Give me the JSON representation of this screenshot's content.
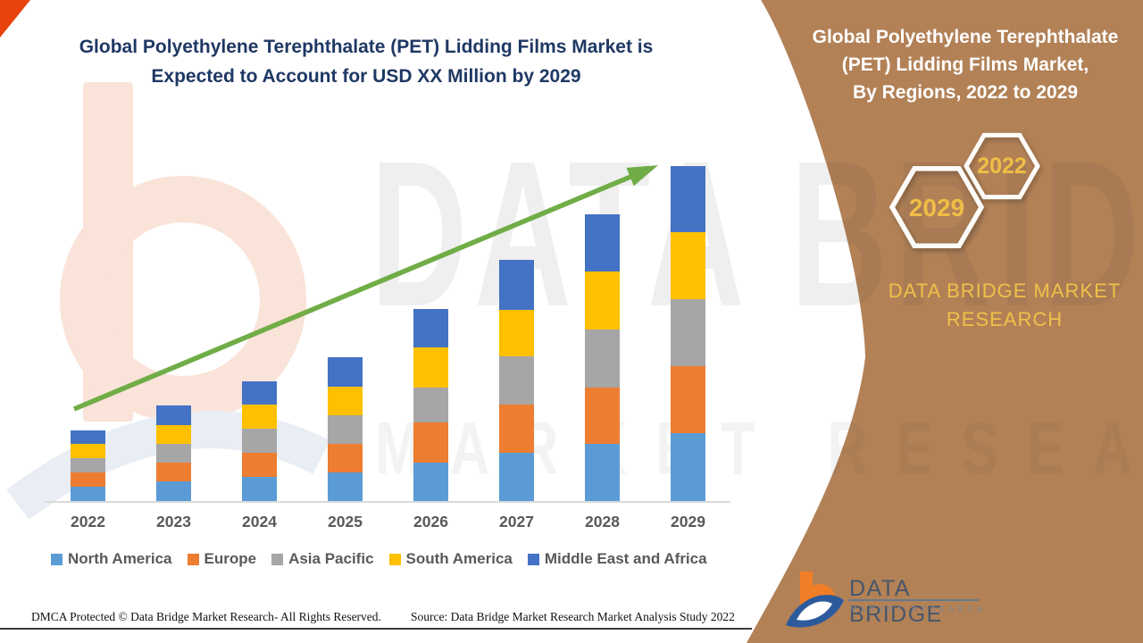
{
  "main_title": {
    "line1": "Global Polyethylene Terephthalate (PET) Lidding Films Market is",
    "line2": "Expected to Account for USD XX Million by 2029",
    "color": "#1F3864"
  },
  "chart_data": {
    "type": "bar",
    "subtype": "stacked-column",
    "title": "Global Polyethylene Terephthalate (PET) Lidding Films Market is Expected to Account for USD XX Million by 2029",
    "categories": [
      "2022",
      "2023",
      "2024",
      "2025",
      "2026",
      "2027",
      "2028",
      "2029"
    ],
    "series": [
      {
        "name": "North America",
        "color": "#5B9BD5",
        "values": [
          16,
          22,
          27,
          32,
          43,
          54,
          64,
          76
        ]
      },
      {
        "name": "Europe",
        "color": "#ED7D31",
        "values": [
          16,
          21,
          27,
          32,
          45,
          54,
          63,
          75
        ]
      },
      {
        "name": "Asia Pacific",
        "color": "#A6A6A6",
        "values": [
          16,
          21,
          27,
          32,
          39,
          54,
          65,
          75
        ]
      },
      {
        "name": "South America",
        "color": "#FFC000",
        "values": [
          16,
          21,
          27,
          32,
          45,
          52,
          65,
          75
        ]
      },
      {
        "name": "Middle East and Africa",
        "color": "#4472C4",
        "values": [
          15,
          22,
          26,
          33,
          43,
          56,
          64,
          74
        ]
      }
    ],
    "stack_totals": [
      79,
      107,
      134,
      161,
      215,
      270,
      321,
      375
    ],
    "value_axis_visible": false,
    "units": "relative units (market value shown as USD XX Million placeholder)",
    "xlabel": "",
    "ylabel": "",
    "legend_position": "bottom",
    "grid": false,
    "trend_arrow": {
      "present": true,
      "color": "#70AD47",
      "direction": "up-right"
    }
  },
  "sidebar": {
    "bg_color": "#B28156",
    "title_lines": [
      "Global Polyethylene Terephthalate",
      "(PET) Lidding Films Market,",
      "By Regions, 2022 to 2029"
    ],
    "hexagon_year_top": "2022",
    "hexagon_year_bottom": "2029",
    "year_color": "#EFBE45",
    "brand_line1": "DATA BRIDGE MARKET",
    "brand_line2": "RESEARCH",
    "logo_title": "DATA BRIDGE",
    "logo_subtitle": "MARKET RESEARCH"
  },
  "footer": {
    "left": "DMCA Protected © Data Bridge Market Research- All Rights Reserved.",
    "source": "Source: Data Bridge Market Research Market Analysis Study 2022"
  },
  "watermark": {
    "text_line1": "DATA BRIDGE",
    "text_line2": "MARKET RESEARCH"
  },
  "accent": {
    "corner_triangle": "#E8430C",
    "arrow_green": "#70AD47"
  }
}
